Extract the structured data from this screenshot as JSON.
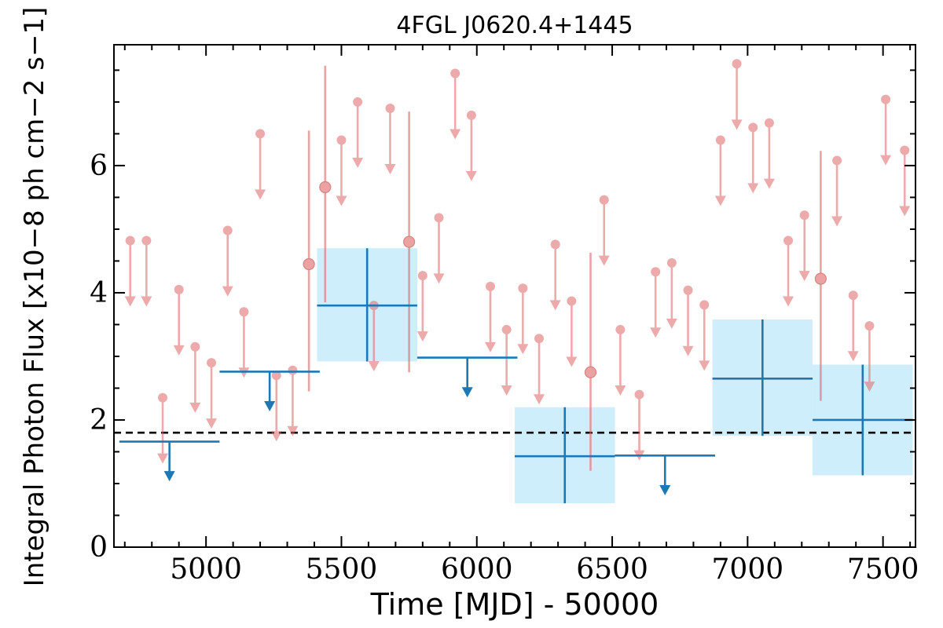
{
  "chart_data": {
    "type": "scatter",
    "title": "4FGL J0620.4+1445",
    "xlabel": "Time [MJD] - 50000",
    "ylabel": "Integral Photon Flux [x10−8 ph cm−2 s−1]",
    "xlim": [
      4660,
      7620
    ],
    "ylim": [
      0,
      7.9
    ],
    "x_ticks": [
      5000,
      5500,
      6000,
      6500,
      7000,
      7500
    ],
    "x_tick_labels": [
      "5000",
      "5500",
      "6000",
      "6500",
      "7000",
      "7500"
    ],
    "y_ticks": [
      0,
      2,
      4,
      6
    ],
    "y_tick_labels": [
      "0",
      "2",
      "4",
      "6"
    ],
    "reference_line": {
      "y": 1.8,
      "style": "dashed",
      "color": "#000000"
    },
    "colors": {
      "short_bins": "#e06666",
      "long_bins": "#1f77b4",
      "error_box": "#cfeefc"
    },
    "short_bin_upper_limits": {
      "x": [
        4720,
        4780,
        4840,
        4900,
        4960,
        5020,
        5080,
        5140,
        5200,
        5260,
        5320,
        5500,
        5560,
        5620,
        5680,
        5800,
        5860,
        5920,
        5980,
        6050,
        6110,
        6170,
        6230,
        6290,
        6350,
        6470,
        6530,
        6600,
        6660,
        6720,
        6780,
        6840,
        6900,
        6960,
        7020,
        7080,
        7150,
        7210,
        7330,
        7390,
        7450,
        7510,
        7580
      ],
      "y": [
        4.82,
        4.82,
        2.35,
        4.05,
        3.15,
        2.9,
        4.98,
        3.7,
        6.5,
        2.7,
        2.78,
        6.4,
        7.0,
        3.8,
        6.9,
        4.27,
        5.18,
        7.45,
        6.79,
        4.1,
        3.42,
        4.07,
        3.28,
        4.76,
        3.87,
        5.46,
        3.42,
        2.4,
        4.33,
        4.47,
        4.04,
        3.81,
        6.4,
        7.6,
        6.6,
        6.67,
        4.82,
        5.22,
        6.08,
        3.96,
        3.48,
        7.04,
        6.24
      ]
    },
    "short_bin_detections": {
      "x": [
        5380,
        5440,
        5750,
        6420,
        7270
      ],
      "y": [
        4.45,
        5.66,
        4.8,
        2.75,
        4.22
      ],
      "y_low": [
        2.45,
        3.85,
        2.75,
        1.2,
        2.3
      ],
      "y_high": [
        6.55,
        7.57,
        6.85,
        4.63,
        6.23
      ]
    },
    "long_bin_upper_limits": [
      {
        "x_start": 4680,
        "x_end": 5050,
        "x_arrow": 4865,
        "y": 1.66
      },
      {
        "x_start": 5050,
        "x_end": 5420,
        "x_arrow": 5235,
        "y": 2.76
      },
      {
        "x_start": 5780,
        "x_end": 6150,
        "x_arrow": 5965,
        "y": 2.98
      },
      {
        "x_start": 6510,
        "x_end": 6880,
        "x_arrow": 6695,
        "y": 1.44
      }
    ],
    "long_bin_detections": [
      {
        "x_start": 5410,
        "x_end": 5780,
        "x": 5595,
        "y": 3.8,
        "y_low": 2.92,
        "y_high": 4.7
      },
      {
        "x_start": 6140,
        "x_end": 6510,
        "x": 6325,
        "y": 1.43,
        "y_low": 0.69,
        "y_high": 2.2
      },
      {
        "x_start": 6870,
        "x_end": 7240,
        "x": 7055,
        "y": 2.65,
        "y_low": 1.75,
        "y_high": 3.58
      },
      {
        "x_start": 7240,
        "x_end": 7610,
        "x": 7425,
        "y": 2.0,
        "y_low": 1.13,
        "y_high": 2.87
      }
    ]
  }
}
